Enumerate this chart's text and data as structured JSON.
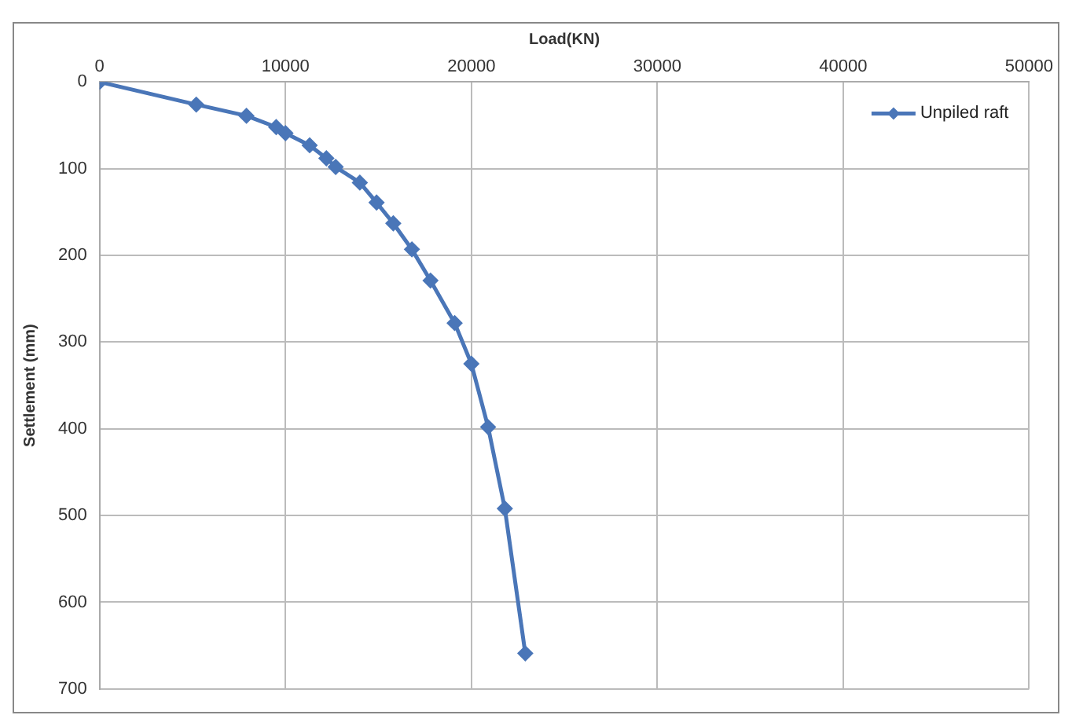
{
  "chart_data": {
    "type": "line",
    "xlabel": "Load(KN)",
    "ylabel": "Settlement (mm)",
    "x": [
      0,
      5200,
      7900,
      9500,
      10000,
      11300,
      12200,
      12700,
      14000,
      14900,
      15800,
      16800,
      17800,
      19100,
      20000,
      20900,
      21800,
      22900
    ],
    "series": [
      {
        "name": "Unpiled raft",
        "color": "#4a76b8",
        "values": [
          0,
          26,
          39,
          52,
          59,
          73,
          88,
          98,
          116,
          139,
          163,
          193,
          229,
          278,
          325,
          398,
          492,
          659
        ]
      }
    ],
    "xlim": [
      0,
      50000
    ],
    "xticks": [
      0,
      10000,
      20000,
      30000,
      40000,
      50000
    ],
    "ylim": [
      700,
      0
    ],
    "yticks": [
      0,
      100,
      200,
      300,
      400,
      500,
      600,
      700
    ],
    "grid": true,
    "legend": "top right",
    "marker": "diamond",
    "line_style": "solid"
  }
}
